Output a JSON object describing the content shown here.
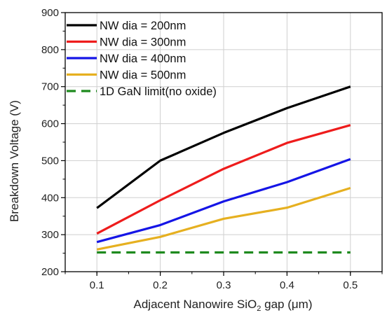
{
  "chart_data": {
    "type": "line",
    "x": [
      0.1,
      0.2,
      0.3,
      0.4,
      0.5
    ],
    "xlim": [
      0.05,
      0.55
    ],
    "ylim": [
      200,
      900
    ],
    "xticks": [
      "0.1",
      "0.2",
      "0.3",
      "0.4",
      "0.5"
    ],
    "yticks": [
      "200",
      "300",
      "400",
      "500",
      "600",
      "700",
      "800",
      "900"
    ],
    "xlabel": {
      "pre": "Adjacent Nanowire SiO",
      "sub": "2",
      "post": " gap (μm)"
    },
    "ylabel": "Breakdown Voltage (V)",
    "grid": true,
    "legend_position": "top-left",
    "series": [
      {
        "name": "NW dia = 200nm",
        "color": "#000000",
        "dash": false,
        "values": [
          372,
          500,
          575,
          642,
          700
        ]
      },
      {
        "name": "NW dia = 300nm",
        "color": "#ee1c1c",
        "dash": false,
        "values": [
          303,
          393,
          478,
          548,
          596
        ]
      },
      {
        "name": "NW dia = 400nm",
        "color": "#1515e6",
        "dash": false,
        "values": [
          280,
          326,
          390,
          442,
          504
        ]
      },
      {
        "name": "NW dia = 500nm",
        "color": "#e6b020",
        "dash": false,
        "values": [
          260,
          294,
          343,
          373,
          426
        ]
      },
      {
        "name": "1D GaN limit(no oxide)",
        "color": "#1e8a1e",
        "dash": true,
        "values": [
          252,
          252,
          252,
          252,
          252
        ]
      }
    ]
  }
}
